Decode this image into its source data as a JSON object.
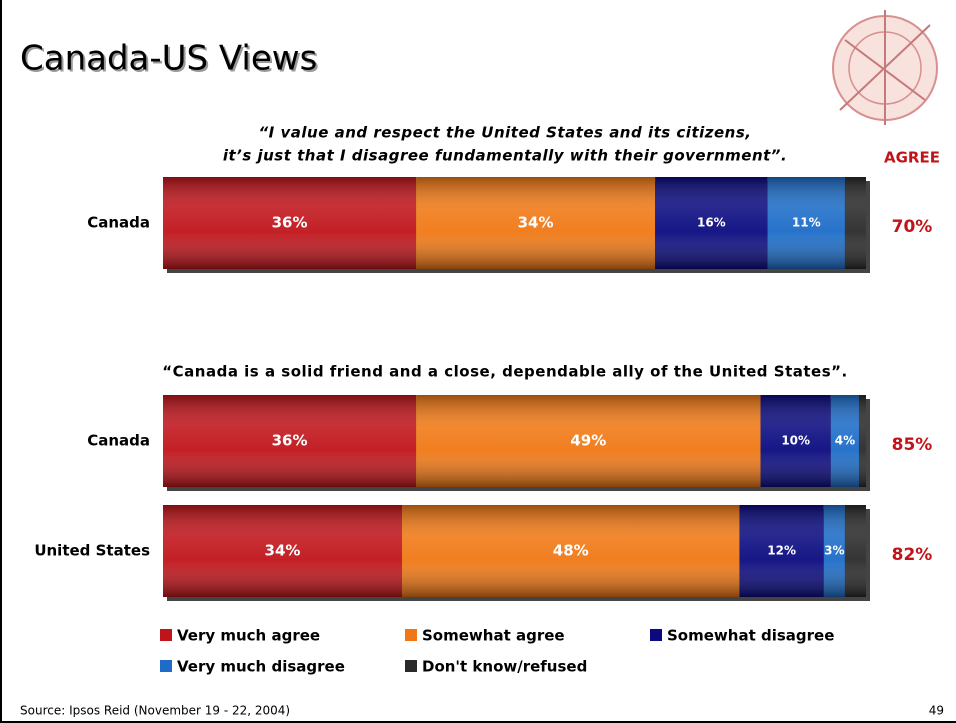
{
  "title": "Canada-US Views",
  "source": "Source: Ipsos Reid (November 19 - 22, 2004)",
  "page_number": "49",
  "chart_data": [
    {
      "type": "stacked-bar",
      "quote_lines": [
        "“I value and respect the United States and its citizens,",
        "it’s just that I disagree fundamentally with their government”."
      ],
      "agree_header": "AGREE",
      "categories": [
        "Canada"
      ],
      "xlim": [
        0,
        100
      ],
      "series": [
        {
          "color": "#c0141a",
          "values": [
            36
          ],
          "value_labels": [
            "36%"
          ]
        },
        {
          "color": "#f07814",
          "values": [
            34
          ],
          "value_labels": [
            "34%"
          ]
        },
        {
          "color": "#0a0a80",
          "values": [
            16
          ],
          "value_labels": [
            "16%"
          ]
        },
        {
          "color": "#1c6cc8",
          "values": [
            11
          ],
          "value_labels": [
            "11%"
          ]
        },
        {
          "color": "#2a2a2a",
          "values": [
            3
          ],
          "value_labels": [
            null
          ]
        }
      ],
      "agree": [
        {
          "value": 70,
          "label": "70%"
        }
      ]
    },
    {
      "type": "stacked-bar",
      "quote_lines": [
        "“Canada is a solid friend and a close, dependable ally of the United States”."
      ],
      "categories": [
        "Canada",
        "United States"
      ],
      "xlim": [
        0,
        100
      ],
      "series": [
        {
          "name": "Very much agree",
          "color": "#c0141a",
          "values": [
            36,
            34
          ],
          "value_labels": [
            "36%",
            "34%"
          ]
        },
        {
          "name": "Somewhat agree",
          "color": "#f07814",
          "values": [
            49,
            48
          ],
          "value_labels": [
            "49%",
            "48%"
          ]
        },
        {
          "name": "Somewhat disagree",
          "color": "#0a0a80",
          "values": [
            10,
            12
          ],
          "value_labels": [
            "10%",
            "12%"
          ]
        },
        {
          "name": "Very much disagree",
          "color": "#1c6cc8",
          "values": [
            4,
            3
          ],
          "value_labels": [
            "4%",
            "3%"
          ]
        },
        {
          "name": "Don't know/refused",
          "color": "#2a2a2a",
          "values": [
            1,
            3
          ],
          "value_labels": [
            null,
            null
          ]
        }
      ],
      "agree": [
        {
          "value": 85,
          "label": "85%"
        },
        {
          "value": 82,
          "label": "82%"
        }
      ]
    }
  ]
}
